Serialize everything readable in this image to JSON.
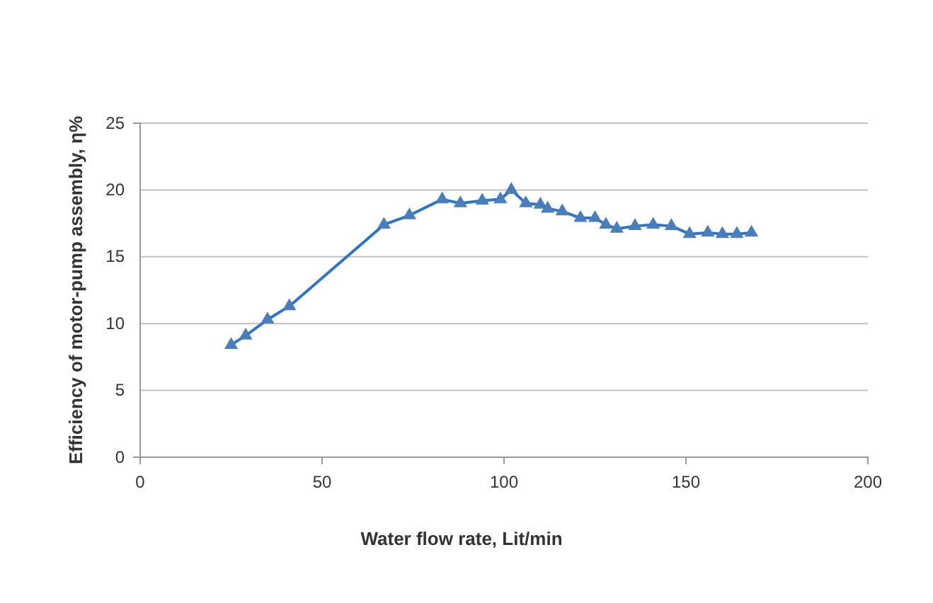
{
  "chart_data": {
    "type": "line",
    "xlabel": "Water flow rate,  Lit/min",
    "ylabel": "Efficiency of motor-pump assembly, η%",
    "x": [
      25,
      29,
      35,
      41,
      67,
      74,
      83,
      88,
      94,
      99,
      102,
      106,
      110,
      112,
      116,
      121,
      125,
      128,
      131,
      136,
      141,
      146,
      151,
      156,
      160,
      164,
      168
    ],
    "series": [
      {
        "color": "#2e75c8",
        "values": [
          8.4,
          9.1,
          10.3,
          11.3,
          17.4,
          18.1,
          19.3,
          19.0,
          19.2,
          19.3,
          20.0,
          19.0,
          18.9,
          18.6,
          18.4,
          17.9,
          17.9,
          17.4,
          17.1,
          17.3,
          17.4,
          17.3,
          16.7,
          16.8,
          16.7,
          16.7,
          16.8
        ]
      }
    ],
    "xlim": [
      0,
      200
    ],
    "xticks": [
      0,
      50,
      100,
      150,
      200
    ],
    "ylim": [
      0,
      25
    ],
    "yticks": [
      0,
      5,
      10,
      15,
      20,
      25
    ],
    "grid": "y",
    "marker": "triangle",
    "line_style": "solid"
  }
}
